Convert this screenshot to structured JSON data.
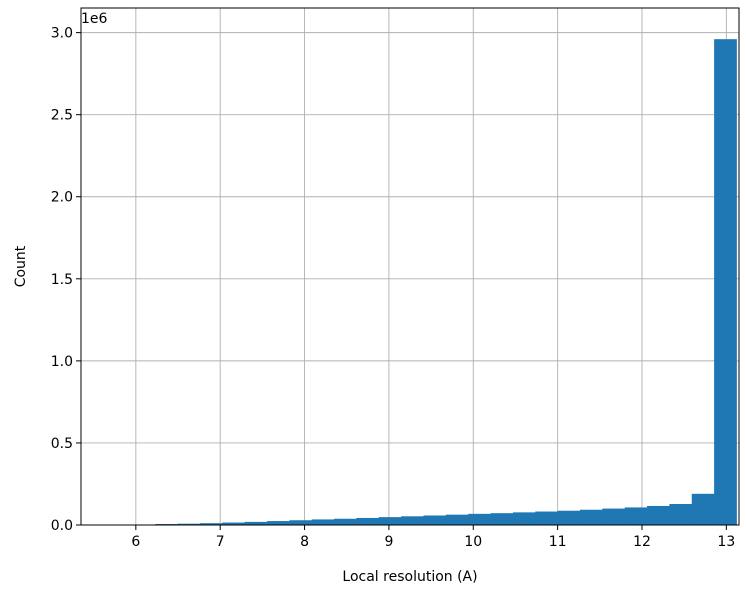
{
  "chart_data": {
    "type": "bar",
    "title": "",
    "xlabel": "Local resolution (A)",
    "ylabel": "Count",
    "y_offset_label": "1e6",
    "xlim": [
      5.35,
      13.15
    ],
    "ylim": [
      0,
      3.15
    ],
    "y_scale_multiplier": 1000000,
    "grid": true,
    "legend": "none",
    "bar_color": "#1f77b4",
    "x_ticks": [
      6,
      7,
      8,
      9,
      10,
      11,
      12,
      13
    ],
    "x_tick_labels": [
      "6",
      "7",
      "8",
      "9",
      "10",
      "11",
      "12",
      "13"
    ],
    "y_ticks": [
      0.0,
      0.5,
      1.0,
      1.5,
      2.0,
      2.5,
      3.0
    ],
    "y_tick_labels": [
      "0.0",
      "0.5",
      "1.0",
      "1.5",
      "2.0",
      "2.5",
      "3.0"
    ],
    "bin_edges": [
      5.7,
      5.965,
      6.23,
      6.495,
      6.76,
      7.025,
      7.29,
      7.555,
      7.82,
      8.085,
      8.35,
      8.615,
      8.88,
      9.145,
      9.41,
      9.675,
      9.94,
      10.205,
      10.47,
      10.735,
      11.0,
      11.265,
      11.53,
      11.795,
      12.06,
      12.325,
      12.59,
      12.855
    ],
    "values": [
      0.0,
      0.002,
      0.006,
      0.008,
      0.011,
      0.015,
      0.019,
      0.024,
      0.029,
      0.034,
      0.038,
      0.043,
      0.048,
      0.053,
      0.058,
      0.063,
      0.068,
      0.072,
      0.077,
      0.082,
      0.087,
      0.093,
      0.1,
      0.107,
      0.116,
      0.128,
      0.19,
      2.96
    ]
  }
}
